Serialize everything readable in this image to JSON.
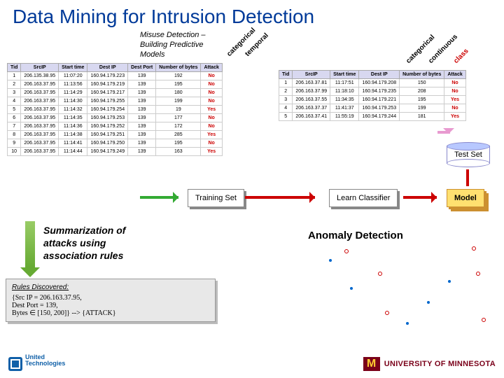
{
  "title": "Data Mining for Intrusion Detection",
  "subtitle1": "Misuse Detection –",
  "subtitle2": "Building Predictive",
  "subtitle3": "Models",
  "rotated_left": [
    "categorical",
    "temporal"
  ],
  "rotated_right": [
    "categorical",
    "continuous",
    "class"
  ],
  "columns": [
    "Tid",
    "SrcIP",
    "Start time",
    "Dest IP",
    "Dest Port",
    "Number of bytes",
    "Attack"
  ],
  "table1": [
    [
      "1",
      "206.135.38.95",
      "11:07:20",
      "160.94.179.223",
      "139",
      "192",
      "No"
    ],
    [
      "2",
      "206.163.37.95",
      "11:13:56",
      "160.94.179.219",
      "139",
      "195",
      "No"
    ],
    [
      "3",
      "206.163.37.95",
      "11:14:29",
      "160.94.179.217",
      "139",
      "180",
      "No"
    ],
    [
      "4",
      "206.163.37.95",
      "11:14:30",
      "160.94.179.255",
      "139",
      "199",
      "No"
    ],
    [
      "5",
      "206.163.37.95",
      "11:14:32",
      "160.94.179.254",
      "139",
      "19",
      "Yes"
    ],
    [
      "6",
      "206.163.37.95",
      "11:14:35",
      "160.94.179.253",
      "139",
      "177",
      "No"
    ],
    [
      "7",
      "206.163.37.95",
      "11:14:36",
      "160.94.179.252",
      "139",
      "172",
      "No"
    ],
    [
      "8",
      "206.163.37.95",
      "11:14:38",
      "160.94.179.251",
      "139",
      "285",
      "Yes"
    ],
    [
      "9",
      "206.163.37.95",
      "11:14:41",
      "160.94.179.250",
      "139",
      "195",
      "No"
    ],
    [
      "10",
      "206.163.37.95",
      "11:14:44",
      "160.94.179.249",
      "139",
      "163",
      "Yes"
    ]
  ],
  "table2": [
    [
      "1",
      "206.163.37.81",
      "11:17:51",
      "160.94.179.208",
      "150",
      "No"
    ],
    [
      "2",
      "206.163.37.99",
      "11:18:10",
      "160.94.179.235",
      "208",
      "No"
    ],
    [
      "3",
      "206.163.37.55",
      "11:34:35",
      "160.94.179.221",
      "195",
      "Yes"
    ],
    [
      "4",
      "206.163.37.37",
      "11:41:37",
      "160.94.179.253",
      "199",
      "No"
    ],
    [
      "5",
      "206.163.37.41",
      "11:55:19",
      "160.94.179.244",
      "181",
      "Yes"
    ]
  ],
  "boxes": {
    "test": "Test Set",
    "train": "Training Set",
    "learn": "Learn Classifier",
    "model": "Model"
  },
  "summarization": [
    "Summarization of",
    "attacks using",
    "association rules"
  ],
  "rules_hd": "Rules Discovered:",
  "rules_body": [
    "{Src IP = 206.163.37.95,",
    "Dest Port = 139,",
    "Bytes ∈ [150, 200]} --> {ATTACK}"
  ],
  "anomaly": "Anomaly Detection",
  "ut": "United\nTechnologies",
  "umn": "UNIVERSITY OF MINNESOTA",
  "colors": {
    "title": "#003a99",
    "accent": "#cc0000",
    "green": "#33aa33",
    "pink": "#e89ad0",
    "gold": "#ffe070",
    "maroon": "#7a0019"
  }
}
